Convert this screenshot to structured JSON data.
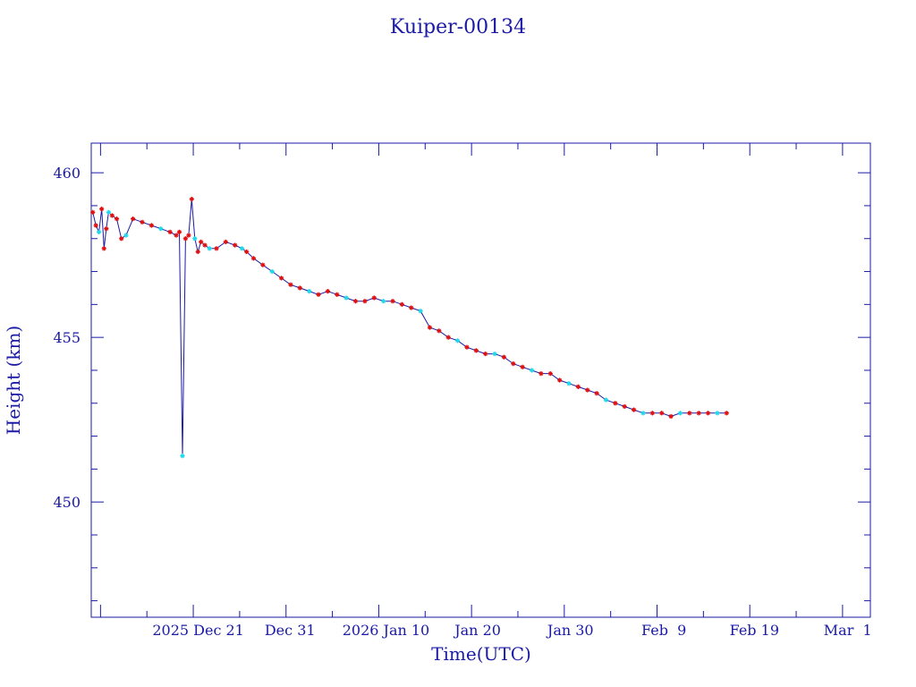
{
  "chart_data": {
    "type": "line",
    "title": "Kuiper-00134",
    "xlabel": "Time(UTC)",
    "ylabel": "Height (km)",
    "xlim": [
      "2025-12-10",
      "2026-03-04"
    ],
    "ylim": [
      446.5,
      460.9
    ],
    "y_ticks": [
      450,
      455,
      460
    ],
    "y_tick_labels": [
      "450",
      "455",
      "460"
    ],
    "x_ticks": [
      {
        "date": "2025-12-21",
        "label": "2025 Dec 21"
      },
      {
        "date": "2025-12-31",
        "label": "Dec 31"
      },
      {
        "date": "2026-01-10",
        "label": "2026 Jan 10"
      },
      {
        "date": "2026-01-20",
        "label": "Jan 20"
      },
      {
        "date": "2026-01-30",
        "label": "Jan 30"
      },
      {
        "date": "2026-02-09",
        "label": "Feb  9"
      },
      {
        "date": "2026-02-19",
        "label": "Feb 19"
      },
      {
        "date": "2026-03-01",
        "label": "Mar  1"
      }
    ],
    "grid": false,
    "colors": {
      "axis": "#1a1aa6",
      "line": "#1a1aa6",
      "marker_main": "#e01010",
      "marker_alt": "#20d8e8"
    },
    "series": [
      {
        "x": [
          "2025-12-10",
          "2025-12-10",
          "2025-12-10",
          "2025-12-11",
          "2025-12-11",
          "2025-12-11",
          "2025-12-11",
          "2025-12-12",
          "2025-12-12",
          "2025-12-13",
          "2025-12-13",
          "2025-12-14",
          "2025-12-15",
          "2025-12-16",
          "2025-12-17",
          "2025-12-18",
          "2025-12-19",
          "2025-12-19",
          "2025-12-19",
          "2025-12-20",
          "2025-12-20",
          "2025-12-20",
          "2025-12-21",
          "2025-12-21",
          "2025-12-21",
          "2025-12-22",
          "2025-12-22",
          "2025-12-23",
          "2025-12-24",
          "2025-12-25",
          "2025-12-26",
          "2025-12-26",
          "2025-12-27",
          "2025-12-28",
          "2025-12-29",
          "2025-12-30",
          "2025-12-31",
          "2026-01-01",
          "2026-01-02",
          "2026-01-03",
          "2026-01-04",
          "2026-01-05",
          "2026-01-06",
          "2026-01-07",
          "2026-01-08",
          "2026-01-09",
          "2026-01-10",
          "2026-01-11",
          "2026-01-12",
          "2026-01-13",
          "2026-01-14",
          "2026-01-15",
          "2026-01-16",
          "2026-01-17",
          "2026-01-18",
          "2026-01-19",
          "2026-01-20",
          "2026-01-21",
          "2026-01-22",
          "2026-01-23",
          "2026-01-24",
          "2026-01-25",
          "2026-01-26",
          "2026-01-27",
          "2026-01-28",
          "2026-01-29",
          "2026-01-30",
          "2026-01-31",
          "2026-02-01",
          "2026-02-02",
          "2026-02-03",
          "2026-02-04",
          "2026-02-05",
          "2026-02-06",
          "2026-02-07",
          "2026-02-08",
          "2026-02-09",
          "2026-02-10",
          "2026-02-11",
          "2026-02-12",
          "2026-02-13",
          "2026-02-14",
          "2026-02-15",
          "2026-02-16"
        ],
        "y": [
          458.8,
          458.4,
          458.2,
          458.9,
          457.7,
          458.3,
          458.8,
          458.7,
          458.6,
          458.0,
          458.1,
          458.6,
          458.5,
          458.4,
          458.3,
          458.2,
          458.1,
          458.2,
          451.4,
          458.0,
          458.1,
          459.2,
          458.0,
          457.6,
          457.9,
          457.8,
          457.7,
          457.7,
          457.9,
          457.8,
          457.7,
          457.6,
          457.4,
          457.2,
          457.0,
          456.8,
          456.6,
          456.5,
          456.4,
          456.3,
          456.4,
          456.3,
          456.2,
          456.1,
          456.1,
          456.2,
          456.1,
          456.1,
          456.0,
          455.9,
          455.8,
          455.3,
          455.2,
          455.0,
          454.9,
          454.7,
          454.6,
          454.5,
          454.5,
          454.4,
          454.2,
          454.1,
          454.0,
          453.9,
          453.9,
          453.7,
          453.6,
          453.5,
          453.4,
          453.3,
          453.1,
          453.0,
          452.9,
          452.8,
          452.7,
          452.7,
          452.7,
          452.6,
          452.7,
          452.7,
          452.7,
          452.7,
          452.7,
          452.7
        ]
      }
    ]
  }
}
